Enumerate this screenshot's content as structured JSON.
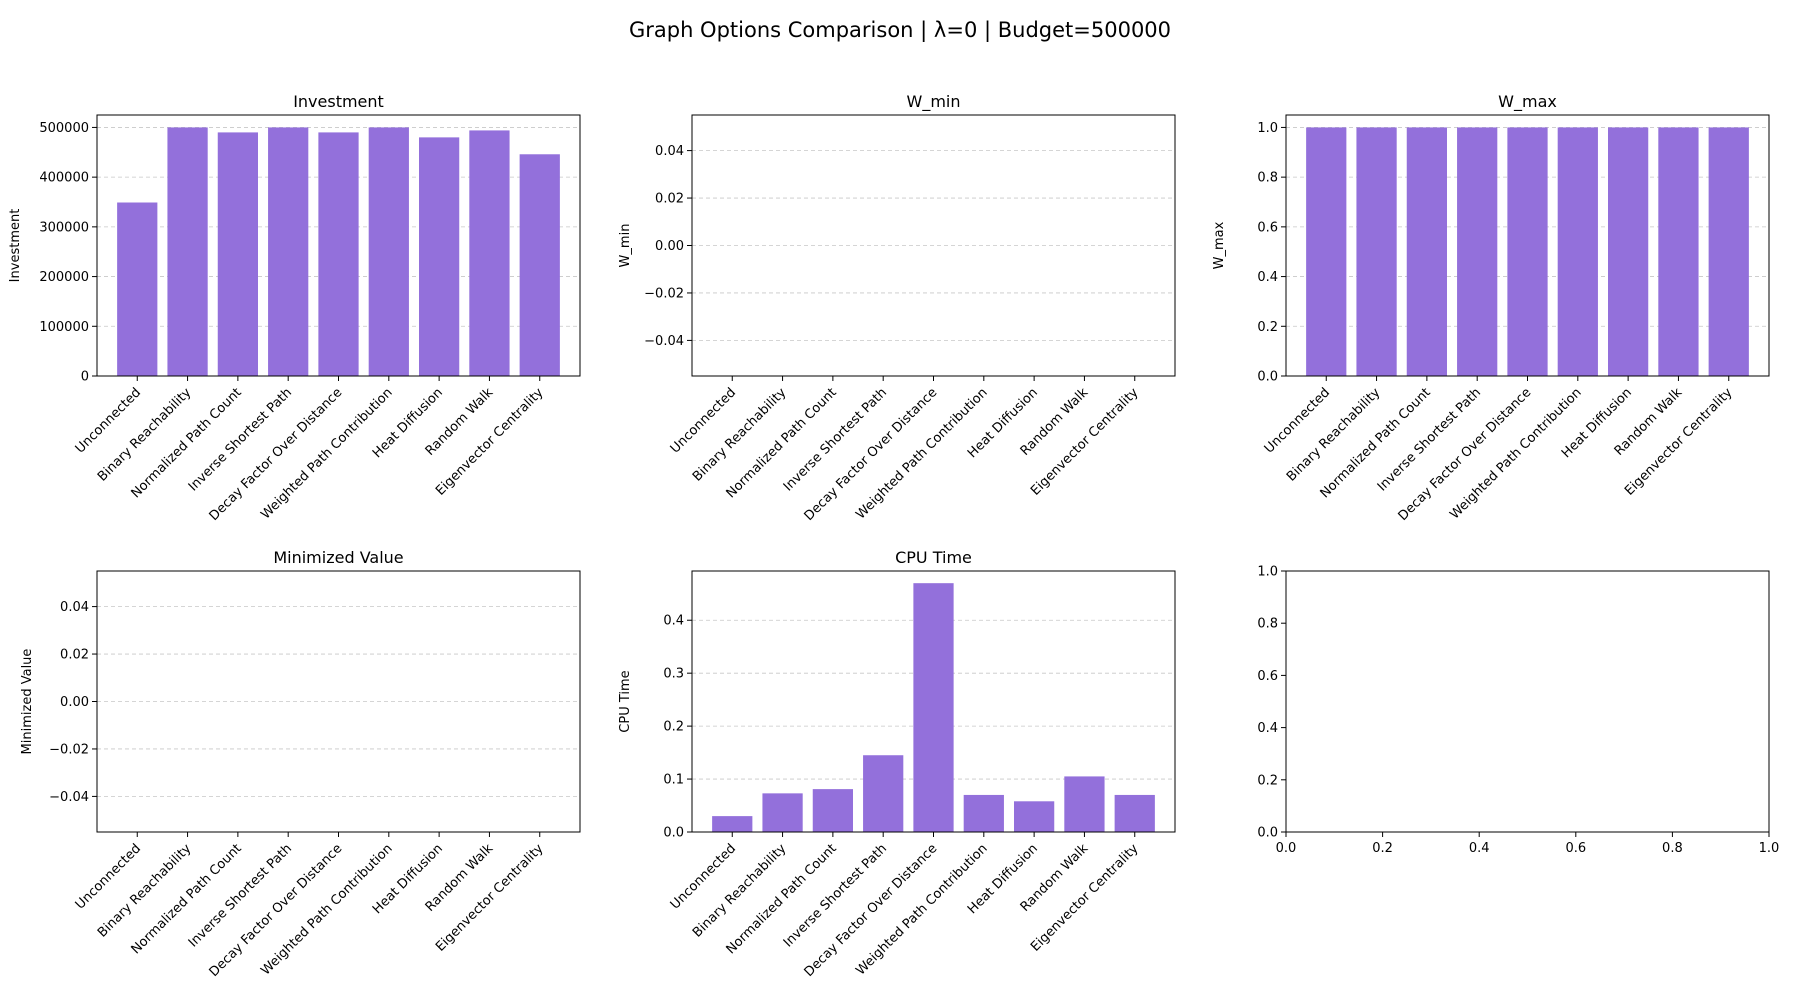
{
  "figure": {
    "title": "Graph Options Comparison | λ=0 | Budget=500000",
    "bar_color": "#9370db"
  },
  "chart_data": [
    {
      "type": "bar",
      "title": "Investment",
      "ylabel": "Investment",
      "categories": [
        "Unconnected",
        "Binary Reachability",
        "Normalized Path Count",
        "Inverse Shortest Path",
        "Decay Factor Over Distance",
        "Weighted Path Contribution",
        "Heat Diffusion",
        "Random Walk",
        "Eigenvector Centrality"
      ],
      "values": [
        349000,
        500000,
        490000,
        500000,
        490000,
        500000,
        480000,
        494000,
        446000
      ],
      "ylim": [
        0,
        525000
      ],
      "yticks": [
        0,
        100000,
        200000,
        300000,
        400000,
        500000
      ],
      "ytick_labels": [
        "0",
        "100000",
        "200000",
        "300000",
        "400000",
        "500000"
      ],
      "grid": true
    },
    {
      "type": "bar",
      "title": "W_min",
      "ylabel": "W_min",
      "categories": [
        "Unconnected",
        "Binary Reachability",
        "Normalized Path Count",
        "Inverse Shortest Path",
        "Decay Factor Over Distance",
        "Weighted Path Contribution",
        "Heat Diffusion",
        "Random Walk",
        "Eigenvector Centrality"
      ],
      "values": [
        0,
        0,
        0,
        0,
        0,
        0,
        0,
        0,
        0
      ],
      "ylim": [
        -0.055,
        0.055
      ],
      "yticks": [
        -0.04,
        -0.02,
        0.0,
        0.02,
        0.04
      ],
      "ytick_labels": [
        "−0.04",
        "−0.02",
        "0.00",
        "0.02",
        "0.04"
      ],
      "grid": true
    },
    {
      "type": "bar",
      "title": "W_max",
      "ylabel": "W_max",
      "categories": [
        "Unconnected",
        "Binary Reachability",
        "Normalized Path Count",
        "Inverse Shortest Path",
        "Decay Factor Over Distance",
        "Weighted Path Contribution",
        "Heat Diffusion",
        "Random Walk",
        "Eigenvector Centrality"
      ],
      "values": [
        1.0,
        1.0,
        1.0,
        1.0,
        1.0,
        1.0,
        1.0,
        1.0,
        1.0
      ],
      "ylim": [
        0,
        1.05
      ],
      "yticks": [
        0.0,
        0.2,
        0.4,
        0.6,
        0.8,
        1.0
      ],
      "ytick_labels": [
        "0.0",
        "0.2",
        "0.4",
        "0.6",
        "0.8",
        "1.0"
      ],
      "grid": true
    },
    {
      "type": "bar",
      "title": "Minimized Value",
      "ylabel": "Minimized Value",
      "categories": [
        "Unconnected",
        "Binary Reachability",
        "Normalized Path Count",
        "Inverse Shortest Path",
        "Decay Factor Over Distance",
        "Weighted Path Contribution",
        "Heat Diffusion",
        "Random Walk",
        "Eigenvector Centrality"
      ],
      "values": [
        0,
        0,
        0,
        0,
        0,
        0,
        0,
        0,
        0
      ],
      "ylim": [
        -0.055,
        0.055
      ],
      "yticks": [
        -0.04,
        -0.02,
        0.0,
        0.02,
        0.04
      ],
      "ytick_labels": [
        "−0.04",
        "−0.02",
        "0.00",
        "0.02",
        "0.04"
      ],
      "grid": true
    },
    {
      "type": "bar",
      "title": "CPU Time",
      "ylabel": "CPU Time",
      "categories": [
        "Unconnected",
        "Binary Reachability",
        "Normalized Path Count",
        "Inverse Shortest Path",
        "Decay Factor Over Distance",
        "Weighted Path Contribution",
        "Heat Diffusion",
        "Random Walk",
        "Eigenvector Centrality"
      ],
      "values": [
        0.03,
        0.073,
        0.081,
        0.145,
        0.47,
        0.07,
        0.058,
        0.105,
        0.07
      ],
      "ylim": [
        0,
        0.493
      ],
      "yticks": [
        0.0,
        0.1,
        0.2,
        0.3,
        0.4
      ],
      "ytick_labels": [
        "0.0",
        "0.1",
        "0.2",
        "0.3",
        "0.4"
      ],
      "grid": true
    },
    {
      "type": "empty",
      "title": "",
      "xlim": [
        0,
        1
      ],
      "ylim": [
        0,
        1
      ],
      "xticks": [
        0.0,
        0.2,
        0.4,
        0.6,
        0.8,
        1.0
      ],
      "xtick_labels": [
        "0.0",
        "0.2",
        "0.4",
        "0.6",
        "0.8",
        "1.0"
      ],
      "yticks": [
        0.0,
        0.2,
        0.4,
        0.6,
        0.8,
        1.0
      ],
      "ytick_labels": [
        "0.0",
        "0.2",
        "0.4",
        "0.6",
        "0.8",
        "1.0"
      ],
      "grid": false
    }
  ]
}
